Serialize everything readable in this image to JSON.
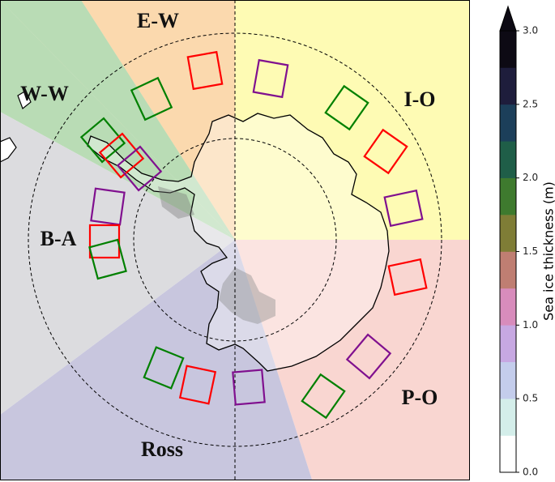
{
  "map": {
    "sectors": [
      "E-W",
      "W-W",
      "I-O",
      "B-A",
      "P-O",
      "Ross"
    ],
    "colorbar": {
      "label": "Sea ice thickness (m)",
      "range": [
        0,
        3
      ],
      "extend": "max",
      "colors": [
        "#ffffff",
        "#d4eeea",
        "#c4cdec",
        "#c7a8e2",
        "#d88cbc",
        "#bf7e72",
        "#7f7d36",
        "#3e7a2e",
        "#1f5e48",
        "#1c3f5a",
        "#1e1d3c",
        "#0d0a14"
      ],
      "ticks": [
        {
          "value": 0,
          "label": "0.0"
        },
        0.5,
        {
          "value": 1,
          "label": "1.0"
        },
        1.5,
        {
          "value": 2,
          "label": "2.0"
        },
        2.5,
        {
          "value": 3,
          "label": "3.0"
        }
      ]
    }
  }
}
